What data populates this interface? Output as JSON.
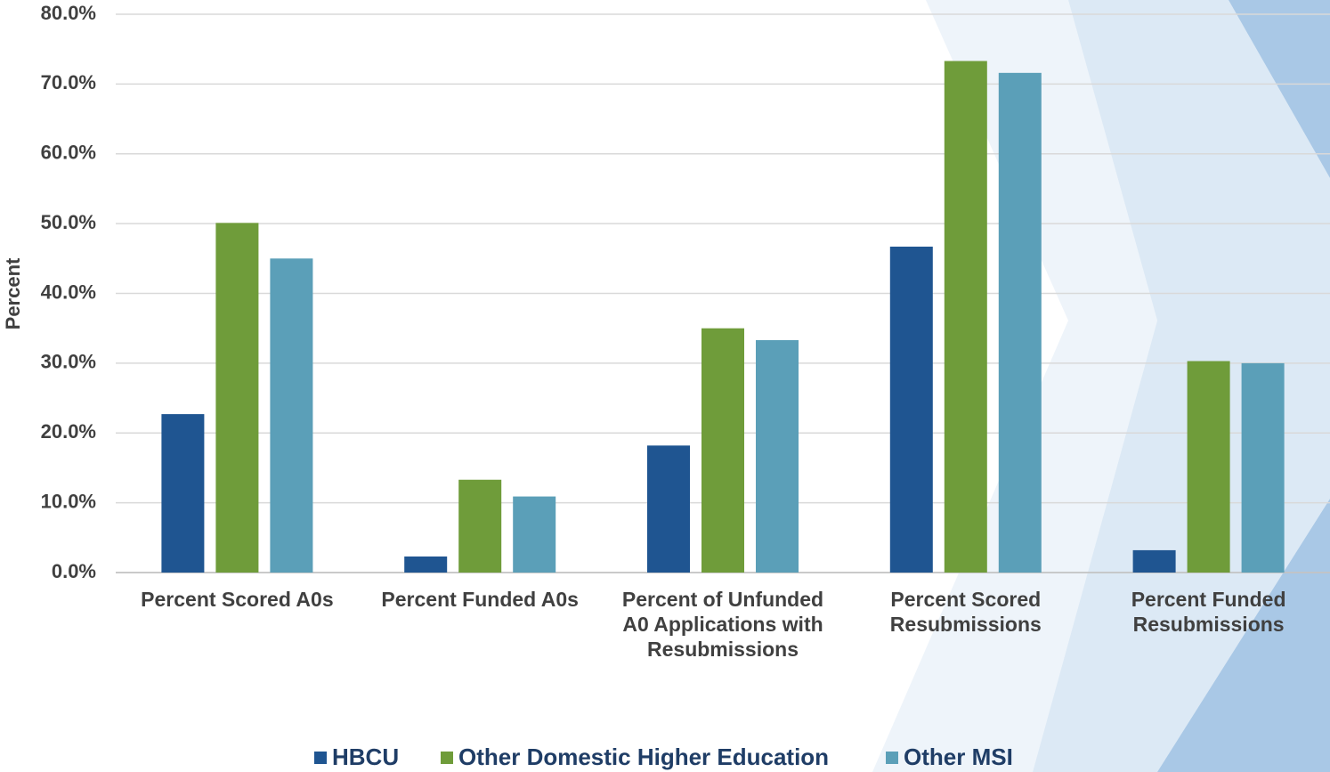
{
  "chart_data": {
    "type": "bar",
    "y_label": "Percent",
    "categories": [
      "Percent Scored A0s",
      "Percent Funded A0s",
      "Percent of Unfunded A0 Applications with Resubmissions",
      "Percent Scored Resubmissions",
      "Percent Funded Resubmissions"
    ],
    "series": [
      {
        "name": "HBCU",
        "color": "#1f5591",
        "values": [
          22.7,
          2.3,
          18.2,
          46.7,
          3.2
        ]
      },
      {
        "name": "Other Domestic Higher Education",
        "color": "#6f9c3a",
        "values": [
          50.1,
          13.3,
          35.0,
          73.3,
          30.3
        ]
      },
      {
        "name": "Other MSI",
        "color": "#5b9fb8",
        "values": [
          45.0,
          10.9,
          33.3,
          71.6,
          30.0
        ]
      }
    ],
    "ylim": [
      0,
      80
    ],
    "yticks": [
      {
        "value": 0,
        "label": "0.0%"
      },
      {
        "value": 10,
        "label": "10.0%"
      },
      {
        "value": 20,
        "label": "20.0%"
      },
      {
        "value": 30,
        "label": "30.0%"
      },
      {
        "value": 40,
        "label": "40.0%"
      },
      {
        "value": 50,
        "label": "50.0%"
      },
      {
        "value": 60,
        "label": "60.0%"
      },
      {
        "value": 70,
        "label": "70.0%"
      },
      {
        "value": 80,
        "label": "80.0%"
      }
    ],
    "grid": true,
    "legend": "bottom"
  }
}
